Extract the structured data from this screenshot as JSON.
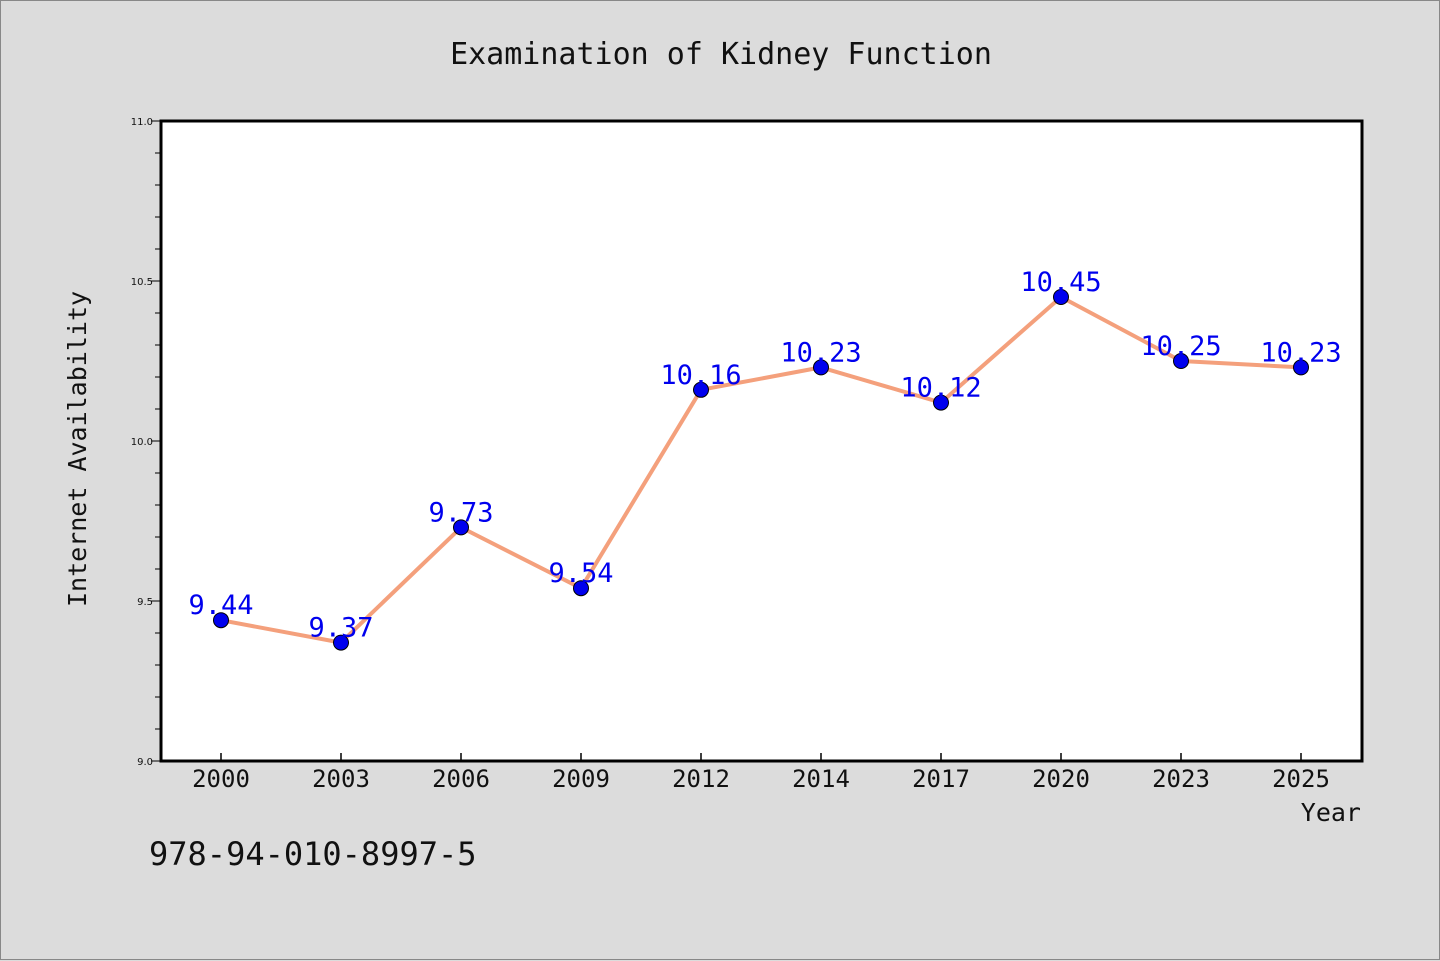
{
  "chart_data": {
    "type": "line",
    "title": "Examination of Kidney Function",
    "xlabel": "Year",
    "ylabel": "Internet Availability",
    "categories": [
      "2000",
      "2003",
      "2006",
      "2009",
      "2012",
      "2014",
      "2017",
      "2020",
      "2023",
      "2025"
    ],
    "series": [
      {
        "values": [
          9.44,
          9.37,
          9.73,
          9.54,
          10.16,
          10.23,
          10.12,
          10.45,
          10.25,
          10.23
        ],
        "labels": [
          "9.44",
          "9.37",
          "9.73",
          "9.54",
          "10.16",
          "10.23",
          "10.12",
          "10.45",
          "10.25",
          "10.23"
        ],
        "line_color": "#f4a07c",
        "marker_color": "#0000ee",
        "label_color": "#0000ee"
      }
    ],
    "ylim": [
      9.0,
      11.0
    ],
    "yticks": [
      "9.0",
      "9.5",
      "10.0",
      "10.5",
      "11.0"
    ],
    "grid": false,
    "annotation": "978-94-010-8997-5"
  }
}
